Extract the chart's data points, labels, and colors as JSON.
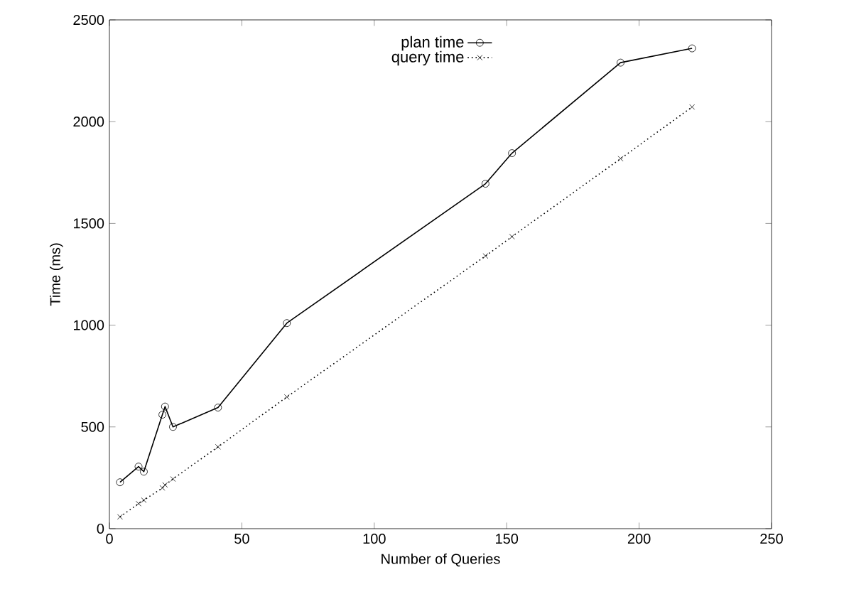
{
  "chart_data": {
    "type": "line",
    "xlabel": "Number of Queries",
    "ylabel": "Time (ms)",
    "xlim": [
      0,
      250
    ],
    "xticks": [
      0,
      50,
      100,
      150,
      200,
      250
    ],
    "ylim": [
      0,
      2500
    ],
    "yticks": [
      0,
      500,
      1000,
      1500,
      2000,
      2500
    ],
    "legend": "top",
    "grid": false,
    "x": [
      4,
      11,
      13,
      20,
      21,
      24,
      41,
      67,
      142,
      152,
      193,
      220
    ],
    "series": [
      {
        "name": "plan time",
        "color": "#000000",
        "marker": "circle",
        "line_style": "solid",
        "values": [
          228,
          305,
          280,
          560,
          600,
          500,
          595,
          1010,
          1695,
          1845,
          2290,
          2360
        ]
      },
      {
        "name": "query time",
        "color": "#000000",
        "marker": "cross",
        "line_style": "dotted",
        "values": [
          58,
          123,
          140,
          200,
          215,
          244,
          402,
          647,
          1340,
          1435,
          1818,
          2072
        ]
      }
    ]
  }
}
